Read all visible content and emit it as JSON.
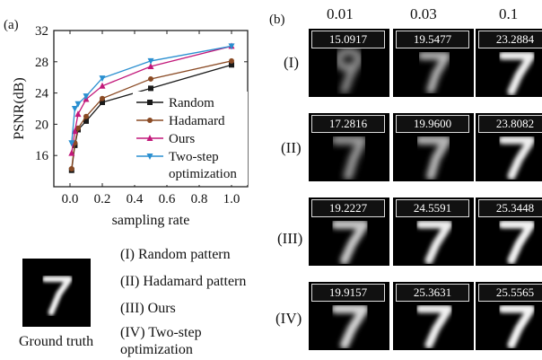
{
  "panel_a": {
    "label": "(a)"
  },
  "panel_b": {
    "label": "(b)"
  },
  "chart_data": {
    "type": "line",
    "xlabel": "sampling rate",
    "ylabel": "PSNR(dB)",
    "xlim": [
      -0.1,
      1.1
    ],
    "ylim": [
      12,
      32
    ],
    "xticks": [
      "0.0",
      "0.2",
      "0.4",
      "0.6",
      "0.8",
      "1.0"
    ],
    "yticks": [
      "16",
      "20",
      "24",
      "28",
      "32"
    ],
    "legend_position": "lower-right",
    "series": [
      {
        "name": "Random",
        "color": "#1a1a1a",
        "marker": "square",
        "x": [
          0.01,
          0.03,
          0.05,
          0.1,
          0.2,
          0.5,
          1.0
        ],
        "y": [
          14.1,
          17.3,
          19.3,
          20.4,
          22.8,
          24.6,
          27.6
        ]
      },
      {
        "name": "Hadamard",
        "color": "#8a4a24",
        "marker": "circle",
        "x": [
          0.01,
          0.03,
          0.05,
          0.1,
          0.2,
          0.5,
          1.0
        ],
        "y": [
          14.3,
          17.6,
          19.5,
          21.0,
          23.3,
          25.8,
          28.1
        ]
      },
      {
        "name": "Ours",
        "color": "#c2187a",
        "marker": "triangle",
        "x": [
          0.01,
          0.03,
          0.05,
          0.1,
          0.2,
          0.5,
          1.0
        ],
        "y": [
          16.3,
          19.1,
          21.3,
          23.2,
          24.9,
          27.4,
          30.0
        ]
      },
      {
        "name": "Two-step optimization",
        "color": "#2a8fd0",
        "marker": "triangle-down",
        "x": [
          0.01,
          0.03,
          0.05,
          0.1,
          0.2,
          0.5,
          1.0
        ],
        "y": [
          17.6,
          22.0,
          22.6,
          23.6,
          25.9,
          28.1,
          30.0
        ]
      }
    ]
  },
  "grid": {
    "columns": [
      "0.01",
      "0.03",
      "0.1"
    ],
    "rows": [
      {
        "label": "(I)",
        "values": [
          "15.0917",
          "19.5477",
          "23.2884"
        ]
      },
      {
        "label": "(II)",
        "values": [
          "17.2816",
          "19.9600",
          "23.8082"
        ]
      },
      {
        "label": "(III)",
        "values": [
          "19.2227",
          "24.5591",
          "25.3448"
        ]
      },
      {
        "label": "(IV)",
        "values": [
          "19.9157",
          "25.3631",
          "25.5565"
        ]
      }
    ]
  },
  "ground_truth": {
    "caption": "Ground truth"
  },
  "methods_legend": [
    "(I) Random pattern",
    "(II) Hadamard pattern",
    "(III) Ours",
    "(IV) Two-step",
    "optimization"
  ]
}
